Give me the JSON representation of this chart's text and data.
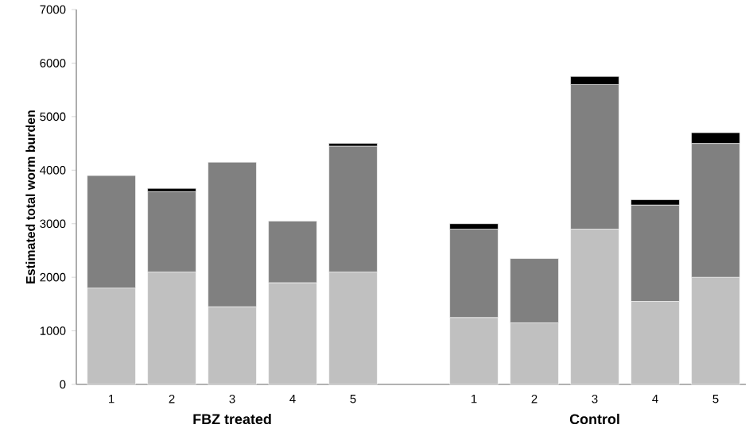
{
  "chart_data": {
    "type": "bar",
    "stacked": true,
    "ylabel": "Estimated total worm burden",
    "categories": [
      "1",
      "2",
      "3",
      "4",
      "5",
      null,
      "1",
      "2",
      "3",
      "4",
      "5"
    ],
    "series": [
      {
        "color": "#c0c0c0",
        "values": [
          1800,
          2100,
          1450,
          1900,
          2100,
          null,
          1250,
          1150,
          2900,
          1550,
          2000
        ]
      },
      {
        "color": "#808080",
        "values": [
          2100,
          1500,
          2700,
          1150,
          2350,
          null,
          1650,
          1200,
          2700,
          1800,
          2500
        ]
      },
      {
        "color": "#000000",
        "values": [
          null,
          60,
          null,
          null,
          50,
          null,
          100,
          null,
          150,
          100,
          200
        ]
      }
    ],
    "ylim": [
      0,
      7000
    ],
    "yticks": [
      0,
      1000,
      2000,
      3000,
      4000,
      5000,
      6000,
      7000
    ],
    "annotations": [
      "FBZ treated",
      "Control"
    ]
  }
}
